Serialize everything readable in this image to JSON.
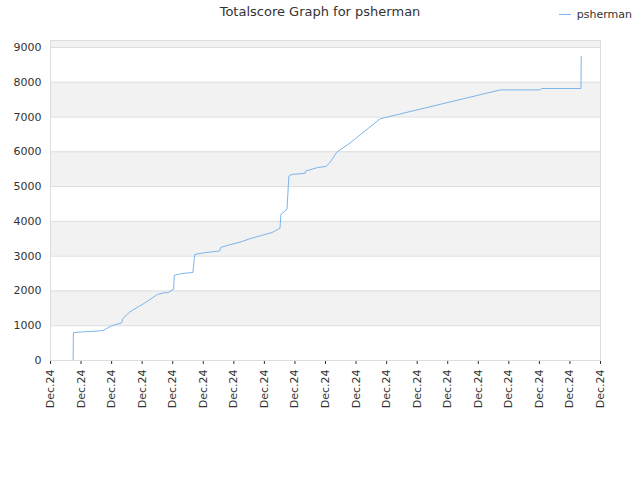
{
  "chart_data": {
    "type": "line",
    "title": "Totalscore Graph for psherman",
    "series": [
      {
        "name": "psherman",
        "color": "#7cb5ec",
        "x": [
          0.74,
          0.75,
          1.0,
          1.6,
          1.74,
          2.0,
          2.33,
          2.36,
          2.6,
          3.08,
          3.5,
          3.74,
          3.84,
          4.03,
          4.05,
          4.3,
          4.66,
          4.72,
          5.05,
          5.54,
          5.57,
          5.87,
          6.2,
          6.52,
          6.92,
          7.25,
          7.51,
          7.54,
          7.74,
          7.8,
          7.9,
          8.33,
          8.36,
          8.75,
          9.02,
          9.15,
          9.38,
          9.8,
          10.79,
          14.72,
          16.03,
          16.07,
          17.36,
          17.37
        ],
        "values": [
          0,
          800,
          820,
          850,
          870,
          1000,
          1080,
          1200,
          1400,
          1650,
          1900,
          1950,
          1950,
          2050,
          2450,
          2500,
          2530,
          3050,
          3100,
          3150,
          3250,
          3330,
          3400,
          3500,
          3600,
          3680,
          3800,
          4200,
          4350,
          5300,
          5350,
          5380,
          5450,
          5550,
          5580,
          5700,
          6000,
          6250,
          6950,
          7780,
          7780,
          7820,
          7820,
          8750
        ]
      }
    ],
    "xlim": [
      0,
      18
    ],
    "xticks": [
      {
        "value": 0,
        "label": "Dec.24"
      },
      {
        "value": 1,
        "label": "Dec.24"
      },
      {
        "value": 2,
        "label": "Dec.24"
      },
      {
        "value": 3,
        "label": "Dec.24"
      },
      {
        "value": 4,
        "label": "Dec.24"
      },
      {
        "value": 5,
        "label": "Dec.24"
      },
      {
        "value": 6,
        "label": "Dec.24"
      },
      {
        "value": 7,
        "label": "Dec.24"
      },
      {
        "value": 8,
        "label": "Dec.24"
      },
      {
        "value": 9,
        "label": "Dec.24"
      },
      {
        "value": 10,
        "label": "Dec.24"
      },
      {
        "value": 11,
        "label": "Dec.24"
      },
      {
        "value": 12,
        "label": "Dec.24"
      },
      {
        "value": 13,
        "label": "Dec.24"
      },
      {
        "value": 14,
        "label": "Dec.24"
      },
      {
        "value": 15,
        "label": "Dec.24"
      },
      {
        "value": 16,
        "label": "Dec.24"
      },
      {
        "value": 17,
        "label": "Dec.24"
      },
      {
        "value": 18,
        "label": "Dec.24"
      }
    ],
    "ylim": [
      0,
      9200
    ],
    "yticks": [
      0,
      1000,
      2000,
      3000,
      4000,
      5000,
      6000,
      7000,
      8000,
      9000
    ],
    "grid": true,
    "legend": "top-right"
  }
}
